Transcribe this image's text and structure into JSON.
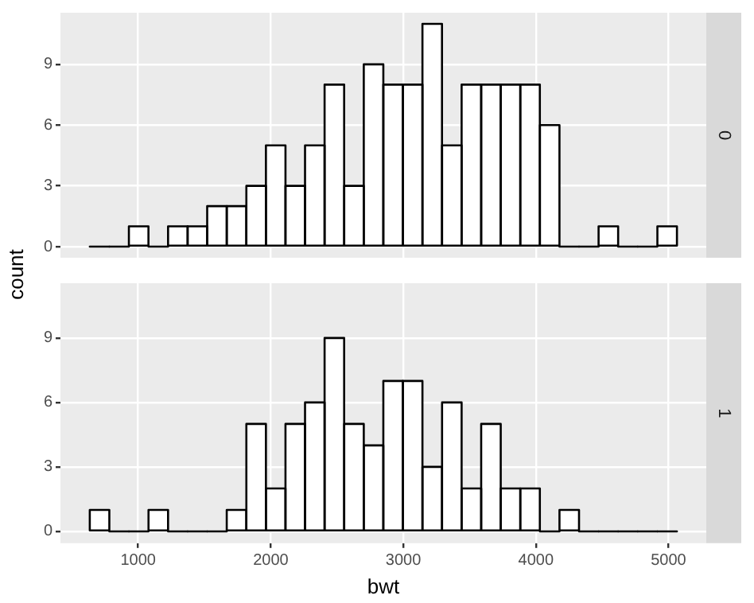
{
  "chart_data": [
    {
      "type": "histogram",
      "annotations": [
        "0"
      ],
      "ylabel": "count",
      "bins": [
        635,
        783,
        930,
        1078,
        1226,
        1373,
        1521,
        1668,
        1816,
        1964,
        2111,
        2259,
        2406,
        2554,
        2702,
        2849,
        2997,
        3144,
        3292,
        3440,
        3587,
        3735,
        3882,
        4030,
        4178,
        4325,
        4473,
        4620,
        4768,
        4916,
        5064
      ],
      "values": [
        0,
        0,
        1,
        0,
        1,
        1,
        2,
        2,
        3,
        5,
        3,
        5,
        8,
        3,
        9,
        8,
        8,
        11,
        5,
        8,
        8,
        8,
        8,
        6,
        0,
        0,
        1,
        0,
        0,
        1
      ],
      "color": "#ffffff",
      "xlim": [
        414,
        5285
      ],
      "xticks": [
        1000,
        2000,
        3000,
        4000,
        5000
      ],
      "ylim": [
        -0.55,
        11.55
      ],
      "yticks": [
        0,
        3,
        6,
        9
      ],
      "grid": true,
      "tick_labels": "y"
    },
    {
      "type": "histogram",
      "annotations": [
        "1"
      ],
      "xlabel": "bwt",
      "bins": [
        635,
        783,
        930,
        1078,
        1226,
        1373,
        1521,
        1668,
        1816,
        1964,
        2111,
        2259,
        2406,
        2554,
        2702,
        2849,
        2997,
        3144,
        3292,
        3440,
        3587,
        3735,
        3882,
        4030,
        4178,
        4325,
        4473,
        4620,
        4768,
        4916,
        5064
      ],
      "values": [
        1,
        0,
        0,
        1,
        0,
        0,
        0,
        1,
        5,
        2,
        5,
        6,
        9,
        5,
        4,
        7,
        7,
        3,
        6,
        2,
        5,
        2,
        2,
        0,
        1,
        0,
        0,
        0,
        0,
        0
      ],
      "color": "#ffffff",
      "xlim": [
        414,
        5285
      ],
      "xticks": [
        1000,
        2000,
        3000,
        4000,
        5000
      ],
      "ylim": [
        -0.55,
        11.55
      ],
      "yticks": [
        0,
        3,
        6,
        9
      ],
      "grid": true
    }
  ]
}
